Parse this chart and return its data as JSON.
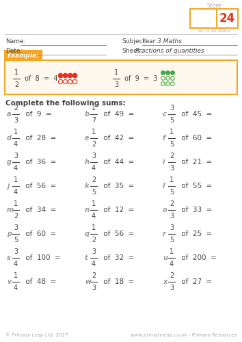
{
  "score_label": "Score",
  "score_value": "24",
  "score_code": "03-15-02-008-s",
  "subject_label": "Subject:",
  "subject_value": "Year 3 Maths",
  "sheet_label": "Sheet:",
  "sheet_value": "Fractions of quantities",
  "name_label": "Name:",
  "date_label": "Date:",
  "example_label": "Example:",
  "instruction": "Complete the following sums:",
  "questions": [
    {
      "label": "a",
      "num": "2",
      "den": "3",
      "of": "9"
    },
    {
      "label": "b",
      "num": "1",
      "den": "7",
      "of": "49"
    },
    {
      "label": "c",
      "num": "3",
      "den": "5",
      "of": "45"
    },
    {
      "label": "d",
      "num": "1",
      "den": "4",
      "of": "28"
    },
    {
      "label": "e",
      "num": "1",
      "den": "2",
      "of": "42"
    },
    {
      "label": "f",
      "num": "1",
      "den": "5",
      "of": "60"
    },
    {
      "label": "g",
      "num": "3",
      "den": "4",
      "of": "36"
    },
    {
      "label": "h",
      "num": "3",
      "den": "4",
      "of": "44"
    },
    {
      "label": "i",
      "num": "2",
      "den": "3",
      "of": "21"
    },
    {
      "label": "j",
      "num": "1",
      "den": "4",
      "of": "56"
    },
    {
      "label": "k",
      "num": "2",
      "den": "5",
      "of": "35"
    },
    {
      "label": "l",
      "num": "1",
      "den": "5",
      "of": "55"
    },
    {
      "label": "m",
      "num": "1",
      "den": "2",
      "of": "34"
    },
    {
      "label": "n",
      "num": "1",
      "den": "4",
      "of": "12"
    },
    {
      "label": "o",
      "num": "2",
      "den": "3",
      "of": "33"
    },
    {
      "label": "p",
      "num": "3",
      "den": "5",
      "of": "60"
    },
    {
      "label": "q",
      "num": "1",
      "den": "2",
      "of": "56"
    },
    {
      "label": "r",
      "num": "3",
      "den": "5",
      "of": "25"
    },
    {
      "label": "s",
      "num": "3",
      "den": "4",
      "of": "100"
    },
    {
      "label": "t",
      "num": "3",
      "den": "4",
      "of": "32"
    },
    {
      "label": "u",
      "num": "1",
      "den": "4",
      "of": "200"
    },
    {
      "label": "v",
      "num": "1",
      "den": "4",
      "of": "48"
    },
    {
      "label": "w",
      "num": "2",
      "den": "3",
      "of": "18"
    },
    {
      "label": "x",
      "num": "2",
      "den": "3",
      "of": "27"
    }
  ],
  "orange": "#F5A623",
  "orange_light": "#FEF8EE",
  "gray_text": "#aaaaaa",
  "dark_text": "#444444",
  "label_color": "#999999",
  "red_score": "#E8341C",
  "footer_left": "© Primary Leap Ltd. 2017",
  "footer_right": "www.primaryleap.co.uk - Primary Resources"
}
